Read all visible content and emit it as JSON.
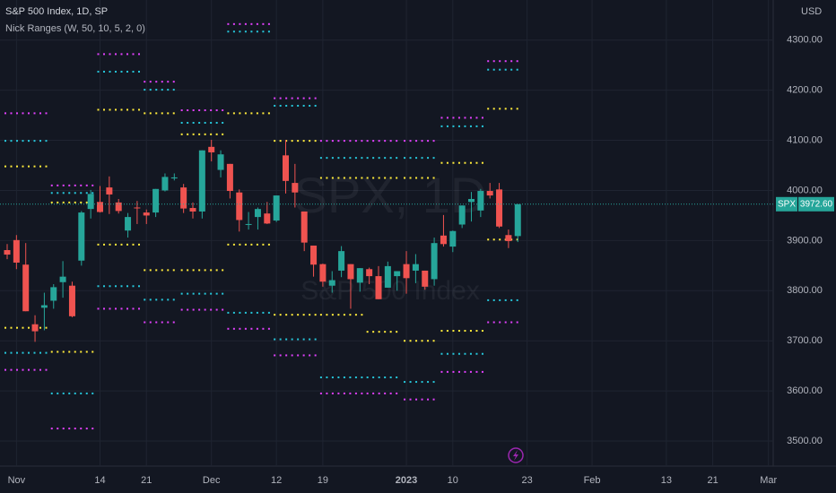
{
  "chart_data": {
    "type": "candlestick",
    "title": "S&P 500 Index, 1D, SP",
    "indicator": "Nick Ranges (W, 50, 10, 5, 2, 0)",
    "currency": "USD",
    "watermark": "SPX, 1D",
    "watermark_subtitle": "S&P 500 Index",
    "symbol": "SPX",
    "last_price": {
      "value": 3972.6,
      "label": "3972.60"
    },
    "up_color": "#26a69a",
    "down_color": "#ef5350",
    "grid": true,
    "categories": [
      null,
      "Nov",
      null,
      null,
      null,
      null,
      null,
      null,
      null,
      null,
      "14",
      null,
      null,
      null,
      null,
      "21",
      null,
      null,
      null,
      null,
      null,
      null,
      "Dec",
      null,
      null,
      null,
      null,
      null,
      null,
      "12",
      null,
      null,
      null,
      null,
      "19",
      null,
      null,
      null,
      null,
      null,
      null,
      null,
      null,
      "2023",
      null,
      null,
      null,
      null,
      "10",
      null,
      null,
      null,
      null,
      null,
      null,
      null,
      "23",
      null,
      null,
      null,
      null,
      null,
      null,
      "Feb",
      null,
      null,
      null,
      null,
      null,
      null,
      null,
      "13",
      null,
      null,
      null,
      null,
      "21",
      null,
      null,
      null,
      null,
      null,
      "Mar"
    ],
    "open": [
      3881,
      3901,
      3852,
      3733,
      3766,
      3780,
      3817,
      3810,
      3860,
      3963,
      3977,
      4006,
      3976,
      3920,
      3966,
      3956,
      3956,
      4000,
      4024,
      4006,
      3965,
      3958,
      4087,
      4041,
      4053,
      3996,
      3933,
      3947,
      3954,
      3940,
      4070,
      4015,
      3958,
      3890,
      3853,
      3810,
      3840,
      3853,
      3816,
      3843,
      3829,
      3806,
      3829,
      3853,
      3840,
      3840,
      3823,
      3910,
      3888,
      3932,
      3977,
      3960,
      3999,
      4002,
      3911,
      3909,
      null,
      null,
      null,
      null,
      null,
      null,
      null,
      null,
      null,
      null,
      null,
      null,
      null,
      null,
      null,
      null,
      null,
      null,
      null,
      null,
      null,
      null,
      null,
      null,
      null,
      null,
      null
    ],
    "high": [
      3893,
      3911,
      3895,
      3751,
      3796,
      3813,
      3859,
      3818,
      3959,
      4001,
      4009,
      4028,
      3983,
      3955,
      3979,
      3962,
      4003,
      4034,
      4034,
      4013,
      3976,
      4080,
      4101,
      4080,
      4053,
      4002,
      3957,
      3966,
      3977,
      3990,
      4101,
      4053,
      3958,
      3890,
      3854,
      3839,
      3889,
      3853,
      3845,
      3846,
      3849,
      3858,
      3839,
      3879,
      3873,
      3840,
      3906,
      3951,
      3920,
      3970,
      3997,
      4003,
      4015,
      4015,
      3922,
      3973,
      null,
      null,
      null,
      null,
      null,
      null,
      null,
      null,
      null,
      null,
      null,
      null,
      null,
      null,
      null,
      null,
      null,
      null,
      null,
      null,
      null,
      null,
      null,
      null,
      null,
      null,
      null
    ],
    "low": [
      3863,
      3843,
      3759,
      3698,
      3721,
      3764,
      3786,
      3747,
      3850,
      3944,
      3956,
      3953,
      3954,
      3906,
      3933,
      3933,
      3947,
      3998,
      4020,
      3955,
      3944,
      3944,
      4058,
      4026,
      3984,
      3918,
      3922,
      3922,
      3933,
      3937,
      3994,
      3966,
      3879,
      3828,
      3808,
      3796,
      3827,
      3764,
      3798,
      3813,
      3783,
      3806,
      3800,
      3794,
      3815,
      3802,
      3810,
      3888,
      3877,
      3925,
      3938,
      3947,
      3984,
      3925,
      3885,
      3897,
      null,
      null,
      null,
      null,
      null,
      null,
      null,
      null,
      null,
      null,
      null,
      null,
      null,
      null,
      null,
      null,
      null,
      null,
      null,
      null,
      null,
      null,
      null,
      null,
      null,
      null,
      null
    ],
    "close": [
      3872,
      3856,
      3759,
      3719,
      3771,
      3807,
      3828,
      3749,
      3956,
      3993,
      3957,
      3992,
      3959,
      3947,
      3965,
      3950,
      4003,
      4027,
      4026,
      3964,
      3958,
      4080,
      4076,
      4072,
      3999,
      3941,
      3933,
      3963,
      3934,
      3990,
      4019,
      3996,
      3896,
      3852,
      3818,
      3821,
      3879,
      3823,
      3845,
      3829,
      3783,
      3849,
      3839,
      3825,
      3853,
      3808,
      3895,
      3893,
      3919,
      3970,
      3983,
      3999,
      3990,
      3928,
      3899,
      3972.6,
      null,
      null,
      null,
      null,
      null,
      null,
      null,
      null,
      null,
      null,
      null,
      null,
      null,
      null,
      null,
      null,
      null,
      null,
      null,
      null,
      null,
      null,
      null,
      null,
      null,
      null,
      null
    ],
    "range_colors": [
      "#e040fb",
      "#26c6da",
      "#ffeb3b",
      "#ffeb3b",
      "#26c6da",
      "#e040fb"
    ],
    "ranges": [
      {
        "start": 0,
        "end": 4,
        "values": [
          4154,
          4099,
          4048,
          3726,
          3676,
          3642
        ]
      },
      {
        "start": 5,
        "end": 9,
        "values": [
          4010,
          3995,
          3976,
          3678,
          3595,
          3525
        ]
      },
      {
        "start": 10,
        "end": 14,
        "values": [
          4272,
          4237,
          4161,
          3892,
          3809,
          3764
        ]
      },
      {
        "start": 15,
        "end": 18,
        "values": [
          4217,
          4201,
          4154,
          3841,
          3782,
          3737
        ]
      },
      {
        "start": 19,
        "end": 23,
        "values": [
          4160,
          4135,
          4112,
          3841,
          3794,
          3762
        ]
      },
      {
        "start": 24,
        "end": 28,
        "values": [
          4332,
          4317,
          4154,
          3892,
          3756,
          3724
        ]
      },
      {
        "start": 29,
        "end": 33,
        "values": [
          4184,
          4169,
          4099,
          3752,
          3703,
          3671
        ]
      },
      {
        "start": 34,
        "end": 38,
        "values": [
          4099,
          4065,
          4025,
          3752,
          3627,
          3595
        ]
      },
      {
        "start": 39,
        "end": 42,
        "values": [
          4099,
          4065,
          4025,
          3718,
          3627,
          3595
        ]
      },
      {
        "start": 43,
        "end": 46,
        "values": [
          4099,
          4065,
          4025,
          3700,
          3618,
          3583
        ]
      },
      {
        "start": 47,
        "end": 51,
        "values": [
          4145,
          4128,
          4055,
          3720,
          3674,
          3638
        ]
      },
      {
        "start": 52,
        "end": 55,
        "values": [
          4258,
          4241,
          4163,
          3902,
          3781,
          3737
        ]
      }
    ],
    "ylim": [
      3450,
      4380
    ],
    "yticks": [
      {
        "value": 3500,
        "label": "3500.00"
      },
      {
        "value": 3600,
        "label": "3600.00"
      },
      {
        "value": 3700,
        "label": "3700.00"
      },
      {
        "value": 3800,
        "label": "3800.00"
      },
      {
        "value": 3900,
        "label": "3900.00"
      },
      {
        "value": 4000,
        "label": "4000.00"
      },
      {
        "value": 4100,
        "label": "4100.00"
      },
      {
        "value": 4200,
        "label": "4200.00"
      },
      {
        "value": 4300,
        "label": "4300.00"
      }
    ]
  }
}
